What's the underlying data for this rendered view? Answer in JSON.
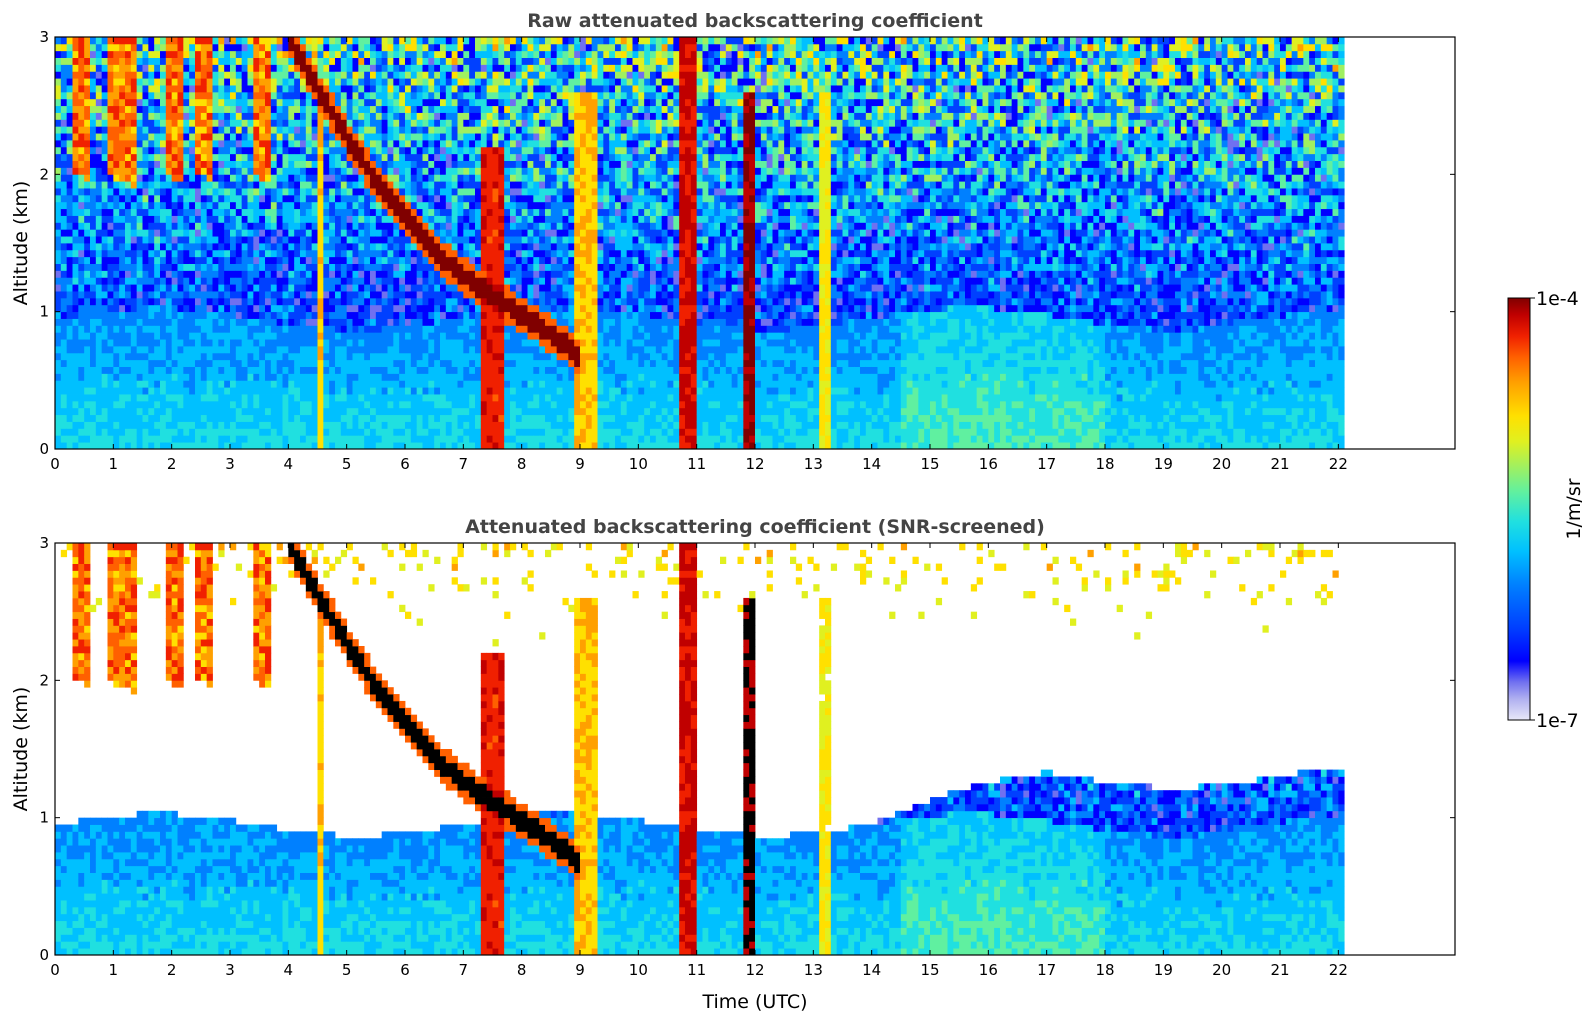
{
  "chart_data": [
    {
      "type": "heatmap",
      "title": "Raw attenuated backscattering coefficient",
      "xlabel": "",
      "ylabel": "Altitude (km)",
      "xlim": [
        0,
        24
      ],
      "ylim": [
        0,
        3
      ],
      "x_ticks": [
        "0",
        "1",
        "2",
        "3",
        "4",
        "5",
        "6",
        "7",
        "8",
        "9",
        "10",
        "11",
        "12",
        "13",
        "14",
        "15",
        "16",
        "17",
        "18",
        "19",
        "20",
        "21",
        "22"
      ],
      "y_ticks": [
        "0",
        "1",
        "2",
        "3"
      ],
      "data_end_hour": 22.1,
      "screened": false,
      "features": [
        {
          "kind": "boundary-layer",
          "hours": [
            0,
            22.1
          ],
          "top_km": 0.95
        },
        {
          "kind": "cloud-layer",
          "hours": [
            4.0,
            9.0
          ],
          "from_km": 3.0,
          "to_km": 0.45
        },
        {
          "kind": "precipitation-column",
          "hours": [
            7.3,
            7.7
          ]
        },
        {
          "kind": "precipitation-column",
          "hours": [
            10.7,
            11.0
          ]
        },
        {
          "kind": "precipitation-column",
          "hours": [
            11.85,
            11.95
          ]
        },
        {
          "kind": "virga",
          "hours": [
            0.3,
            1.6
          ],
          "from_km": 3.0,
          "to_km": 2.0
        }
      ]
    },
    {
      "type": "heatmap",
      "title": "Attenuated backscattering coefficient (SNR-screened)",
      "xlabel": "Time (UTC)",
      "ylabel": "Altitude (km)",
      "xlim": [
        0,
        24
      ],
      "ylim": [
        0,
        3
      ],
      "x_ticks": [
        "0",
        "1",
        "2",
        "3",
        "4",
        "5",
        "6",
        "7",
        "8",
        "9",
        "10",
        "11",
        "12",
        "13",
        "14",
        "15",
        "16",
        "17",
        "18",
        "19",
        "20",
        "21",
        "22"
      ],
      "y_ticks": [
        "0",
        "1",
        "2",
        "3"
      ],
      "data_end_hour": 22.1,
      "screened": true
    }
  ],
  "colorbar": {
    "label": "1/m/sr",
    "max_label": "1e-4",
    "min_label": "1e-7",
    "colors": [
      "#e8e8f8",
      "#b0b0f0",
      "#7070f0",
      "#0000ff",
      "#0040ff",
      "#0080ff",
      "#00c0ff",
      "#20e0e0",
      "#60f0a0",
      "#a0f060",
      "#e0f020",
      "#ffe000",
      "#ffa000",
      "#ff6000",
      "#f02000",
      "#c00000",
      "#800000"
    ]
  }
}
